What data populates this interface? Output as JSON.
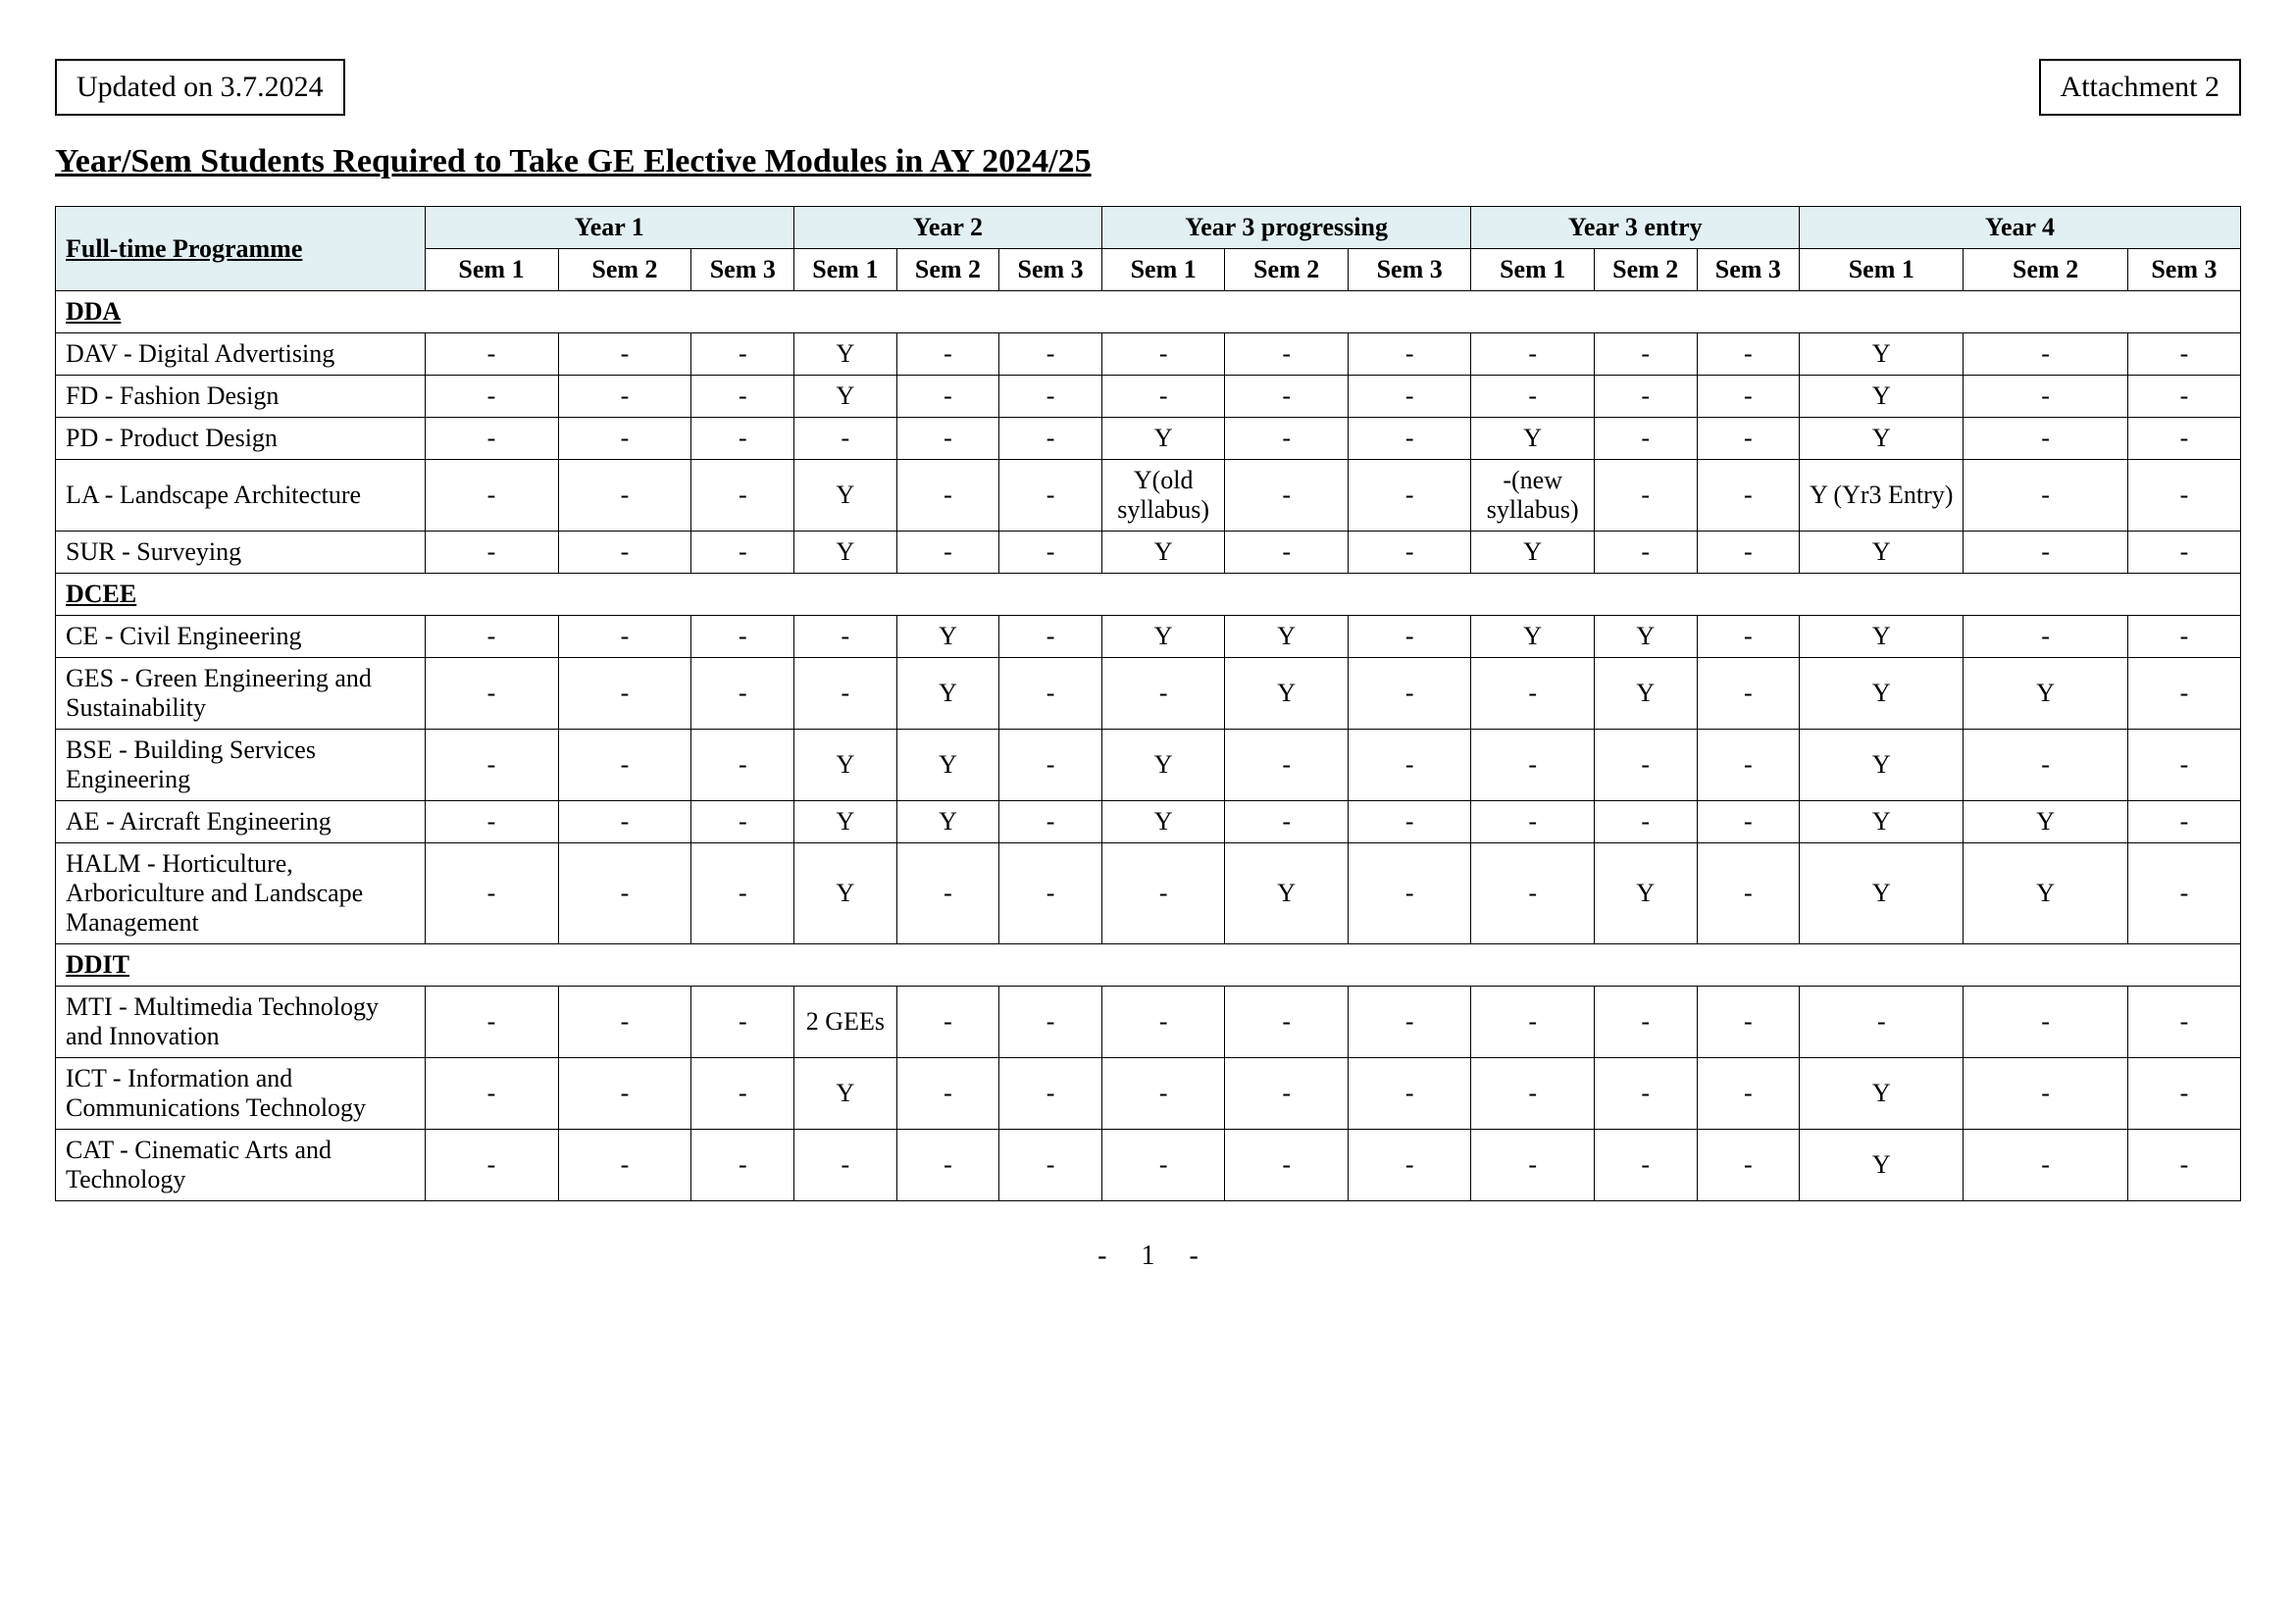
{
  "colors": {
    "header_bg": "#e2eff3",
    "border": "#000000",
    "text": "#000000",
    "page_bg": "#ffffff"
  },
  "typography": {
    "family": "Times New Roman",
    "title_pt": 34,
    "body_pt": 26,
    "box_pt": 30
  },
  "header": {
    "updated": "Updated on 3.7.2024",
    "attachment": "Attachment 2"
  },
  "title": "Year/Sem Students Required to Take GE Elective Modules in AY 2024/25",
  "table": {
    "corner": "Full-time Programme",
    "years": [
      "Year 1",
      "Year 2",
      "Year 3 progressing",
      "Year 3 entry",
      "Year 4"
    ],
    "sems": [
      "Sem 1",
      "Sem 2",
      "Sem 3"
    ],
    "groups": [
      {
        "dept": "DDA",
        "rows": [
          {
            "name": "DAV - Digital Advertising",
            "cells": [
              "-",
              "-",
              "-",
              "Y",
              "-",
              "-",
              "-",
              "-",
              "-",
              "-",
              "-",
              "-",
              "Y",
              "-",
              "-"
            ]
          },
          {
            "name": "FD - Fashion Design",
            "cells": [
              "-",
              "-",
              "-",
              "Y",
              "-",
              "-",
              "-",
              "-",
              "-",
              "-",
              "-",
              "-",
              "Y",
              "-",
              "-"
            ]
          },
          {
            "name": "PD - Product Design",
            "cells": [
              "-",
              "-",
              "-",
              "-",
              "-",
              "-",
              "Y",
              "-",
              "-",
              "Y",
              "-",
              "-",
              "Y",
              "-",
              "-"
            ]
          },
          {
            "name": "LA - Landscape Architecture",
            "cells": [
              "-",
              "-",
              "-",
              "Y",
              "-",
              "-",
              "Y(old syllabus)",
              "-",
              "-",
              "-(new syllabus)",
              "-",
              "-",
              "Y (Yr3 Entry)",
              "-",
              "-"
            ]
          },
          {
            "name": "SUR - Surveying",
            "cells": [
              "-",
              "-",
              "-",
              "Y",
              "-",
              "-",
              "Y",
              "-",
              "-",
              "Y",
              "-",
              "-",
              "Y",
              "-",
              "-"
            ]
          }
        ]
      },
      {
        "dept": "DCEE",
        "rows": [
          {
            "name": "CE - Civil Engineering",
            "cells": [
              "-",
              "-",
              "-",
              "-",
              "Y",
              "-",
              "Y",
              "Y",
              "-",
              "Y",
              "Y",
              "-",
              "Y",
              "-",
              "-"
            ]
          },
          {
            "name": "GES - Green Engineering and Sustainability",
            "cells": [
              "-",
              "-",
              "-",
              "-",
              "Y",
              "-",
              "-",
              "Y",
              "-",
              "-",
              "Y",
              "-",
              "Y",
              "Y",
              "-"
            ]
          },
          {
            "name": "BSE - Building Services Engineering",
            "cells": [
              "-",
              "-",
              "-",
              "Y",
              "Y",
              "-",
              "Y",
              "-",
              "-",
              "-",
              "-",
              "-",
              "Y",
              "-",
              "-"
            ]
          },
          {
            "name": "AE - Aircraft Engineering",
            "cells": [
              "-",
              "-",
              "-",
              "Y",
              "Y",
              "-",
              "Y",
              "-",
              "-",
              "-",
              "-",
              "-",
              "Y",
              "Y",
              "-"
            ]
          },
          {
            "name": "HALM - Horticulture, Arboriculture and Landscape Management",
            "cells": [
              "-",
              "-",
              "-",
              "Y",
              "-",
              "-",
              "-",
              "Y",
              "-",
              "-",
              "Y",
              "-",
              "Y",
              "Y",
              "-"
            ]
          }
        ]
      },
      {
        "dept": "DDIT",
        "rows": [
          {
            "name": "MTI - Multimedia Technology and Innovation",
            "cells": [
              "-",
              "-",
              "-",
              "2 GEEs",
              "-",
              "-",
              "-",
              "-",
              "-",
              "-",
              "-",
              "-",
              "-",
              "-",
              "-"
            ]
          },
          {
            "name": "ICT - Information and Communications Technology",
            "cells": [
              "-",
              "-",
              "-",
              "Y",
              "-",
              "-",
              "-",
              "-",
              "-",
              "-",
              "-",
              "-",
              "Y",
              "-",
              "-"
            ]
          },
          {
            "name": "CAT - Cinematic Arts and Technology",
            "cells": [
              "-",
              "-",
              "-",
              "-",
              "-",
              "-",
              "-",
              "-",
              "-",
              "-",
              "-",
              "-",
              "Y",
              "-",
              "-"
            ]
          }
        ]
      }
    ]
  },
  "footer": {
    "left": "-",
    "page": "1",
    "right": "-"
  }
}
